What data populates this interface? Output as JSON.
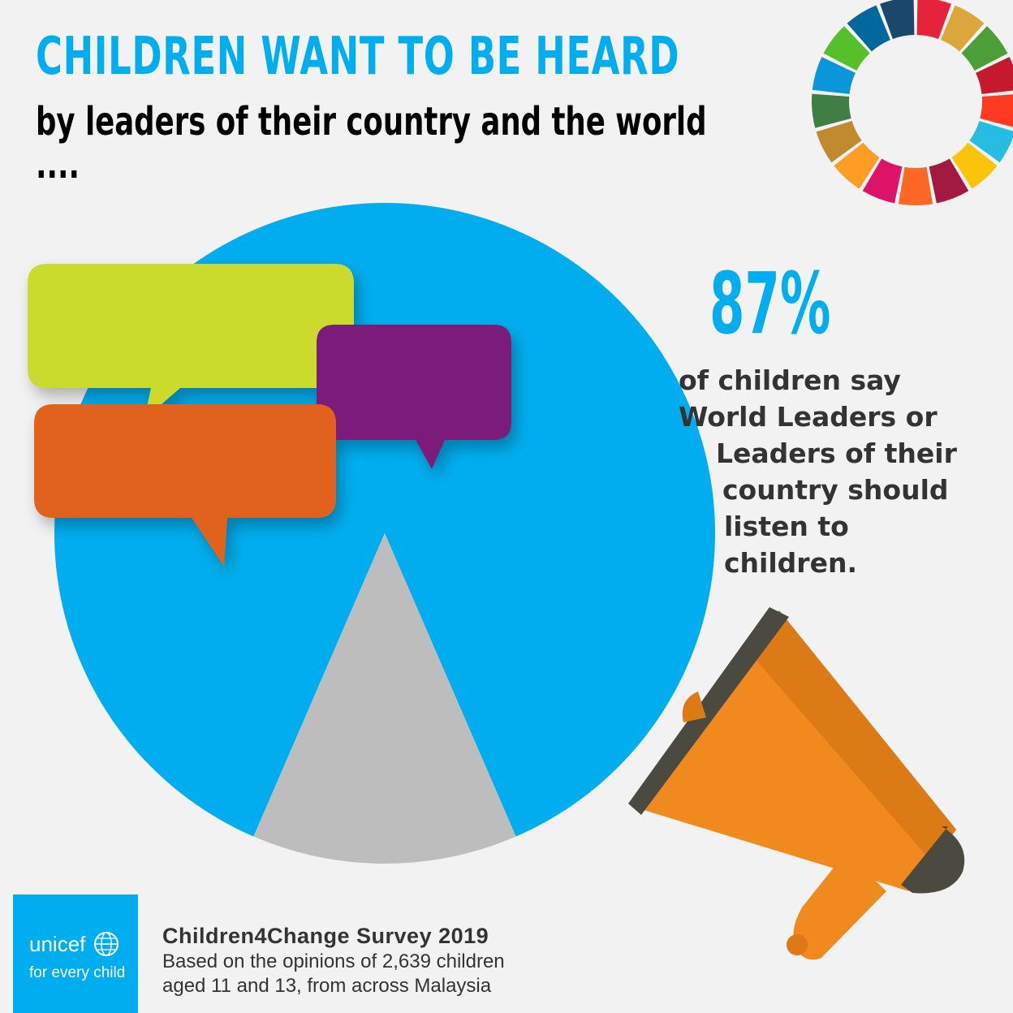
{
  "header": {
    "title": "CHILDREN WANT TO BE HEARD",
    "subtitle": "by leaders of their country and the world ...."
  },
  "chart_data": {
    "type": "pie",
    "slices": [
      {
        "value": 87,
        "color": "#00aeef"
      },
      {
        "value": 13,
        "color": "#bdbdbd"
      }
    ],
    "labels": [],
    "title": ""
  },
  "stat": {
    "value": "87%",
    "lines": [
      "of children say",
      "World Leaders or",
      "Leaders of their",
      "country should",
      "listen to",
      "children."
    ]
  },
  "logo": {
    "wordmark": "unicef",
    "tagline": "for every child"
  },
  "source": {
    "title": "Children4Change Survey 2019",
    "lines": [
      "Based on the opinions of 2,639 children",
      "aged 11 and 13, from across Malaysia"
    ]
  },
  "colors": {
    "title": "#00aeef",
    "subtitle": "#000000",
    "pie_main": "#00aeef",
    "pie_minor": "#bdbdbd",
    "bubble_green": "#cadb2f",
    "bubble_orange": "#e0621e",
    "bubble_purple": "#7b1f7a",
    "megaphone": "#f08a1e",
    "megaphone_shadow": "#dc7a16",
    "megaphone_rim": "#4a4a40",
    "logo_bg": "#00aeef",
    "sdg": [
      "#e5243b",
      "#dda63a",
      "#4c9f38",
      "#c5192d",
      "#ff3a21",
      "#26bde2",
      "#fcc30b",
      "#a21942",
      "#fd6925",
      "#dd1367",
      "#fd9d24",
      "#bf8b2e",
      "#3f7e44",
      "#0a97d9",
      "#56c02b",
      "#00689d",
      "#19486a"
    ]
  },
  "icons": {
    "logo_globe": "unicef-globe-icon",
    "megaphone": "megaphone-icon",
    "bubbles": "speech-bubbles-icon",
    "sdg_wheel": "sdg-wheel-icon"
  }
}
